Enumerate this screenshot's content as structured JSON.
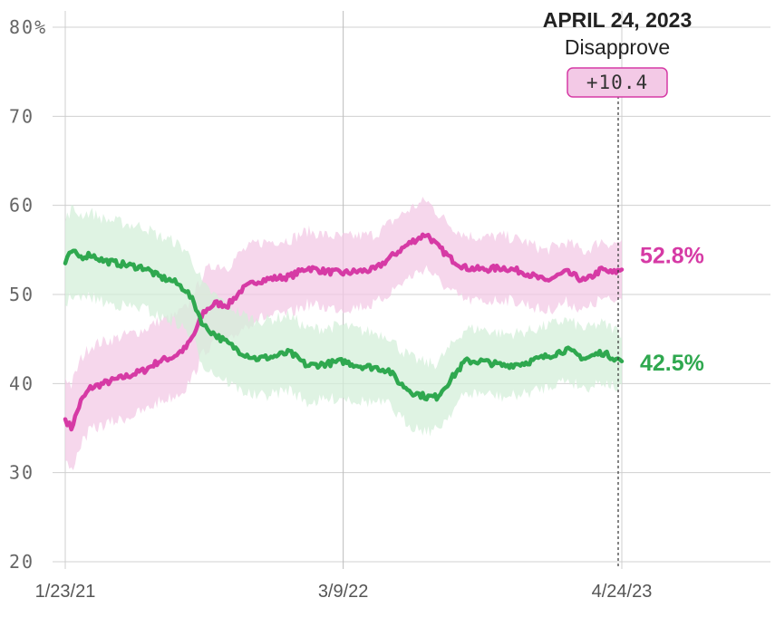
{
  "chart_data": {
    "type": "line",
    "y_ticks": [
      "80%",
      "70",
      "60",
      "50",
      "40",
      "30",
      "20"
    ],
    "y_tick_values": [
      80,
      70,
      60,
      50,
      40,
      30,
      20
    ],
    "ylim": [
      20,
      80
    ],
    "x_ticks": [
      "1/23/21",
      "3/9/22",
      "4/24/23"
    ],
    "x_tick_dates": [
      "2021-01-23",
      "2022-03-09",
      "2023-04-24"
    ],
    "grid": true,
    "series": [
      {
        "key": "disapprove",
        "color": "#d63aa5",
        "band_color": "#f3c9e6",
        "end_label": "52.8%",
        "points": [
          [
            "2021-01-23",
            36.0
          ],
          [
            "2021-02-01",
            35.0
          ],
          [
            "2021-02-15",
            38.0
          ],
          [
            "2021-03-01",
            39.5
          ],
          [
            "2021-03-20",
            40.0
          ],
          [
            "2021-04-10",
            40.5
          ],
          [
            "2021-05-01",
            41.0
          ],
          [
            "2021-05-20",
            41.5
          ],
          [
            "2021-06-10",
            42.5
          ],
          [
            "2021-07-01",
            43.0
          ],
          [
            "2021-07-20",
            44.0
          ],
          [
            "2021-08-01",
            45.5
          ],
          [
            "2021-08-15",
            48.0
          ],
          [
            "2021-09-01",
            49.0
          ],
          [
            "2021-09-20",
            48.8
          ],
          [
            "2021-10-10",
            50.5
          ],
          [
            "2021-11-01",
            51.5
          ],
          [
            "2021-11-25",
            51.8
          ],
          [
            "2021-12-20",
            52.0
          ],
          [
            "2022-01-15",
            53.0
          ],
          [
            "2022-02-10",
            52.6
          ],
          [
            "2022-03-09",
            52.4
          ],
          [
            "2022-04-01",
            52.6
          ],
          [
            "2022-04-25",
            52.8
          ],
          [
            "2022-05-15",
            54.0
          ],
          [
            "2022-06-01",
            55.0
          ],
          [
            "2022-06-20",
            56.0
          ],
          [
            "2022-07-10",
            56.8
          ],
          [
            "2022-07-25",
            55.5
          ],
          [
            "2022-08-15",
            54.0
          ],
          [
            "2022-09-05",
            53.0
          ],
          [
            "2022-10-01",
            52.8
          ],
          [
            "2022-11-01",
            53.0
          ],
          [
            "2022-12-01",
            52.5
          ],
          [
            "2023-01-01",
            51.5
          ],
          [
            "2023-02-01",
            52.5
          ],
          [
            "2023-03-01",
            51.5
          ],
          [
            "2023-03-25",
            52.8
          ],
          [
            "2023-04-10",
            52.4
          ],
          [
            "2023-04-24",
            52.8
          ]
        ]
      },
      {
        "key": "approve",
        "color": "#2fa84f",
        "band_color": "#d4efda",
        "end_label": "42.5%",
        "points": [
          [
            "2021-01-23",
            53.5
          ],
          [
            "2021-02-01",
            54.8
          ],
          [
            "2021-02-15",
            54.2
          ],
          [
            "2021-03-01",
            54.5
          ],
          [
            "2021-03-20",
            53.8
          ],
          [
            "2021-04-10",
            53.5
          ],
          [
            "2021-05-01",
            53.2
          ],
          [
            "2021-05-20",
            53.0
          ],
          [
            "2021-06-10",
            52.0
          ],
          [
            "2021-07-01",
            51.5
          ],
          [
            "2021-07-20",
            50.5
          ],
          [
            "2021-08-01",
            49.0
          ],
          [
            "2021-08-15",
            46.5
          ],
          [
            "2021-09-01",
            45.5
          ],
          [
            "2021-09-20",
            44.5
          ],
          [
            "2021-10-10",
            43.5
          ],
          [
            "2021-11-01",
            42.8
          ],
          [
            "2021-11-25",
            43.0
          ],
          [
            "2021-12-20",
            43.5
          ],
          [
            "2022-01-15",
            42.0
          ],
          [
            "2022-02-10",
            42.2
          ],
          [
            "2022-03-09",
            42.5
          ],
          [
            "2022-04-01",
            42.0
          ],
          [
            "2022-04-25",
            41.8
          ],
          [
            "2022-05-15",
            41.5
          ],
          [
            "2022-06-01",
            40.0
          ],
          [
            "2022-06-20",
            39.0
          ],
          [
            "2022-07-10",
            38.5
          ],
          [
            "2022-07-25",
            38.5
          ],
          [
            "2022-08-15",
            40.5
          ],
          [
            "2022-09-05",
            42.5
          ],
          [
            "2022-10-01",
            42.5
          ],
          [
            "2022-11-01",
            42.0
          ],
          [
            "2022-12-01",
            42.3
          ],
          [
            "2023-01-01",
            43.0
          ],
          [
            "2023-02-01",
            43.8
          ],
          [
            "2023-03-01",
            42.8
          ],
          [
            "2023-03-25",
            43.5
          ],
          [
            "2023-04-10",
            43.0
          ],
          [
            "2023-04-24",
            42.5
          ]
        ]
      }
    ],
    "annotation": {
      "date_text": "APRIL 24, 2023",
      "label": "Disapprove",
      "badge": "+10.4",
      "badge_fill": "#f3c9e6",
      "badge_stroke": "#d63aa5"
    }
  }
}
